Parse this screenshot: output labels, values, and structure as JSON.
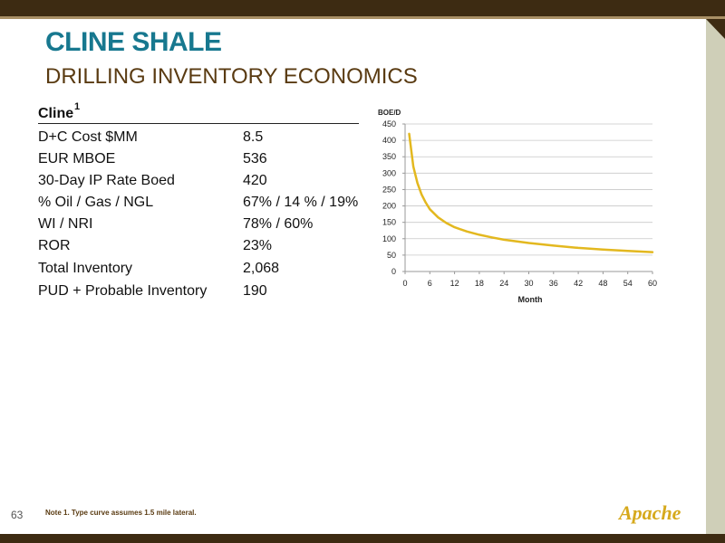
{
  "slide": {
    "title": "CLINE SHALE",
    "subtitle": "DRILLING INVENTORY ECONOMICS",
    "page_number": "63",
    "footnote": "Note 1. Type curve assumes 1.5 mile lateral.",
    "logo_text": "Apache"
  },
  "table": {
    "header": "Cline",
    "header_sup": "1",
    "rows": [
      {
        "label": "D+C Cost $MM",
        "value": "8.5"
      },
      {
        "label": "EUR MBOE",
        "value": "536"
      },
      {
        "label": "30-Day IP Rate Boed",
        "value": "420"
      },
      {
        "label": "% Oil / Gas / NGL",
        "value": "67% / 14 % / 19%"
      },
      {
        "label": "WI / NRI",
        "value": "78% / 60%"
      },
      {
        "label": "ROR",
        "value": "23%"
      },
      {
        "label": "Total Inventory",
        "value": "2,068"
      },
      {
        "label": "PUD + Probable Inventory",
        "value": "190"
      }
    ]
  },
  "chart_data": {
    "type": "line",
    "ylabel": "BOE/D",
    "xlabel": "Month",
    "ylim": [
      0,
      450
    ],
    "xlim": [
      0,
      60
    ],
    "yticks": [
      0,
      50,
      100,
      150,
      200,
      250,
      300,
      350,
      400,
      450
    ],
    "xticks": [
      0,
      6,
      12,
      18,
      24,
      30,
      36,
      42,
      48,
      54,
      60
    ],
    "grid": true,
    "color": "#e3b81f",
    "series": [
      {
        "x": [
          1,
          2,
          3,
          4,
          5,
          6,
          8,
          10,
          12,
          15,
          18,
          21,
          24,
          30,
          36,
          42,
          48,
          54,
          60
        ],
        "values": [
          420,
          320,
          270,
          235,
          210,
          190,
          165,
          148,
          135,
          122,
          112,
          104,
          97,
          87,
          79,
          72,
          67,
          63,
          59
        ]
      }
    ]
  }
}
